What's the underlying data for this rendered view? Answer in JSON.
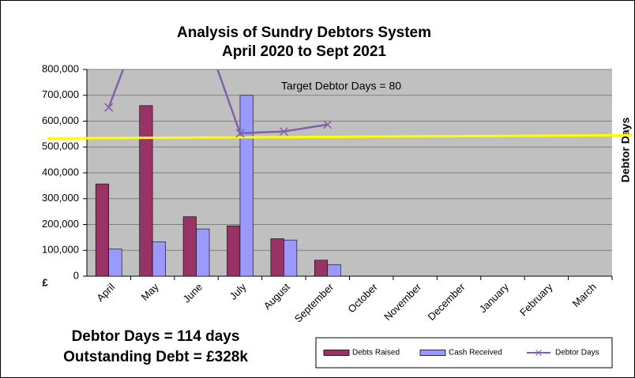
{
  "chart_data": {
    "type": "bar",
    "title": "Analysis of Sundry Debtors System",
    "subtitle": "April 2020 to Sept 2021",
    "y_label": "£",
    "y2_label": "Debtor Days",
    "categories": [
      "April",
      "May",
      "June",
      "July",
      "August",
      "September",
      "October",
      "November",
      "December",
      "January",
      "February",
      "March"
    ],
    "series": [
      {
        "name": "Debts Raised",
        "color": "#993366",
        "values": [
          357000,
          660000,
          230000,
          195000,
          145000,
          62000,
          null,
          null,
          null,
          null,
          null,
          null
        ]
      },
      {
        "name": "Cash Received",
        "color": "#9999ff",
        "values": [
          105000,
          133000,
          183000,
          700000,
          140000,
          45000,
          null,
          null,
          null,
          null,
          null,
          null
        ]
      },
      {
        "name": "Debtor Days",
        "type": "line",
        "axis": "y2",
        "color": "#7f62a8",
        "values": [
          98,
          165,
          155,
          83,
          84,
          88,
          null,
          null,
          null,
          null,
          null,
          null
        ]
      }
    ],
    "ylim": [
      0,
      800000
    ],
    "yticks": [
      0,
      {
        "value": 100000,
        "label": "100,000"
      },
      {
        "value": 200000,
        "label": "200,000"
      },
      {
        "value": 300000,
        "label": "300,000"
      },
      {
        "value": 400000,
        "label": "400,000"
      },
      {
        "value": 500000,
        "label": "500,000"
      },
      {
        "value": 600000,
        "label": "600,000"
      },
      {
        "value": 700000,
        "label": "700,000"
      },
      {
        "value": 800000,
        "label": "800,000"
      }
    ],
    "y2lim": [
      0,
      120
    ],
    "target": 80,
    "target_color": "#ffff00",
    "annotation": "Target Debtor Days = 80",
    "notes": [
      "Debtor Days = 114 days",
      "Outstanding Debt = £328k"
    ],
    "grid": true,
    "legend": "bottom-right"
  }
}
